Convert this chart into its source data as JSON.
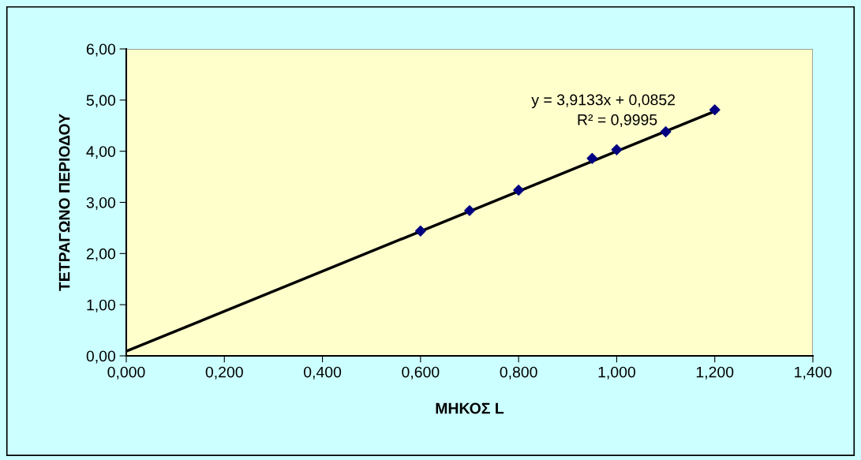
{
  "chart_data": {
    "type": "scatter",
    "xlabel": "ΜΗΚΟΣ L",
    "ylabel": "ΤΕΤΡΑΓΩΝΟ ΠΕΡΙΟΔΟΥ",
    "series": [
      {
        "color": "#000080",
        "marker": "diamond",
        "x": [
          0.6,
          0.7,
          0.8,
          0.95,
          1.0,
          1.1,
          1.2
        ],
        "values": [
          2.44,
          2.84,
          3.24,
          3.86,
          4.03,
          4.38,
          4.81
        ]
      },
      {
        "type": "line",
        "color": "#000000",
        "marker": "none",
        "line_style": "solid",
        "x": [
          0,
          1.2
        ],
        "values": [
          0.09,
          4.78
        ]
      }
    ],
    "annotations": [
      "y = 3,9133x + 0,0852",
      "R² = 0,9995"
    ],
    "xlim": [
      0,
      1.4
    ],
    "ylim": [
      0,
      6
    ],
    "xticks": [
      {
        "value": 0,
        "label": "0,000"
      },
      {
        "value": 0.2,
        "label": "0,200"
      },
      {
        "value": 0.4,
        "label": "0,400"
      },
      {
        "value": 0.6,
        "label": "0,600"
      },
      {
        "value": 0.8,
        "label": "0,800"
      },
      {
        "value": 1.0,
        "label": "1,000"
      },
      {
        "value": 1.2,
        "label": "1,200"
      },
      {
        "value": 1.4,
        "label": "1,400"
      }
    ],
    "yticks": [
      {
        "value": 0,
        "label": "0,00"
      },
      {
        "value": 1,
        "label": "1,00"
      },
      {
        "value": 2,
        "label": "2,00"
      },
      {
        "value": 3,
        "label": "3,00"
      },
      {
        "value": 4,
        "label": "4,00"
      },
      {
        "value": 5,
        "label": "5,00"
      },
      {
        "value": 6,
        "label": "6,00"
      }
    ],
    "grid": false,
    "legend": false
  }
}
